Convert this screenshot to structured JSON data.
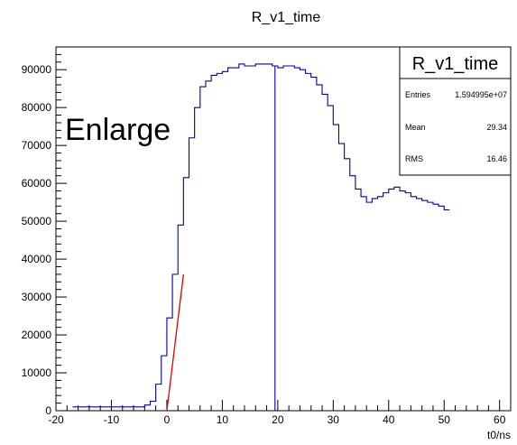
{
  "chart_data": {
    "type": "histogram",
    "title": "R_v1_time",
    "xlabel": "t0/ns",
    "ylabel": "",
    "xlim": [
      -20,
      62
    ],
    "ylim": [
      0,
      96000
    ],
    "x_ticks": [
      -20,
      -10,
      0,
      10,
      20,
      30,
      40,
      50,
      60
    ],
    "y_ticks": [
      0,
      10000,
      20000,
      30000,
      40000,
      50000,
      60000,
      70000,
      80000,
      90000
    ],
    "bin_width": 1,
    "bins_start": -17,
    "counts": [
      1000,
      1000,
      1000,
      1000,
      1000,
      1000,
      1000,
      1000,
      1000,
      1000,
      1000,
      1000,
      1000,
      1500,
      2500,
      7000,
      14500,
      24500,
      36000,
      49000,
      61500,
      72000,
      80000,
      85500,
      87000,
      88500,
      89000,
      89500,
      90500,
      90500,
      91500,
      91000,
      91000,
      91500,
      91500,
      91500,
      91000,
      90500,
      91000,
      91000,
      90500,
      90000,
      89000,
      88000,
      86000,
      83500,
      80500,
      75500,
      70500,
      66500,
      62000,
      58500,
      56500,
      55000,
      56000,
      56500,
      57500,
      58500,
      59000,
      58000,
      57500,
      56500,
      56000,
      55500,
      55000,
      54500,
      54000,
      53000
    ],
    "mean_line_x": 19.5,
    "fit_line": {
      "x": [
        0,
        3
      ],
      "y": [
        0,
        36000
      ]
    },
    "overlay_text": "Enlarge",
    "stats_box": {
      "title": "R_v1_time",
      "rows": [
        {
          "label": "Entries",
          "value": "1.594995e+07"
        },
        {
          "label": "Mean",
          "value": "29.34"
        },
        {
          "label": "RMS",
          "value": "16.46"
        }
      ]
    },
    "colors": {
      "histogram": "#0000a8",
      "mean_line": "#0000a8",
      "fit": "#e00000",
      "frame": "#000000"
    }
  }
}
